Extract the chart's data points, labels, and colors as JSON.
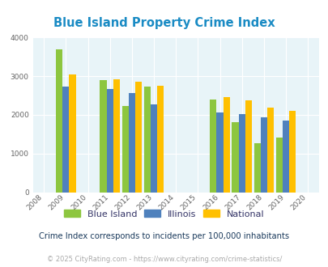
{
  "title": "Blue Island Property Crime Index",
  "subtitle": "Crime Index corresponds to incidents per 100,000 inhabitants",
  "footer": "© 2025 CityRating.com - https://www.cityrating.com/crime-statistics/",
  "years": [
    2009,
    2011,
    2012,
    2013,
    2016,
    2017,
    2018,
    2019
  ],
  "blue_island": [
    3700,
    2900,
    2220,
    2720,
    2400,
    1800,
    1260,
    1420
  ],
  "illinois": [
    2720,
    2660,
    2560,
    2280,
    2060,
    2020,
    1940,
    1860
  ],
  "national": [
    3040,
    2920,
    2860,
    2740,
    2460,
    2380,
    2180,
    2100
  ],
  "color_blue_island": "#8dc63f",
  "color_illinois": "#4f81bd",
  "color_national": "#ffc000",
  "xlim": [
    2007.5,
    2020.5
  ],
  "ylim": [
    0,
    4000
  ],
  "yticks": [
    0,
    1000,
    2000,
    3000,
    4000
  ],
  "xticks": [
    2008,
    2009,
    2010,
    2011,
    2012,
    2013,
    2014,
    2015,
    2016,
    2017,
    2018,
    2019,
    2020
  ],
  "bg_color": "#e8f4f8",
  "title_color": "#1a8bc4",
  "subtitle_color": "#1a3a5c",
  "footer_color": "#aaaaaa",
  "legend_text_color": "#333366",
  "bar_width": 0.3,
  "grid_color": "#ffffff"
}
